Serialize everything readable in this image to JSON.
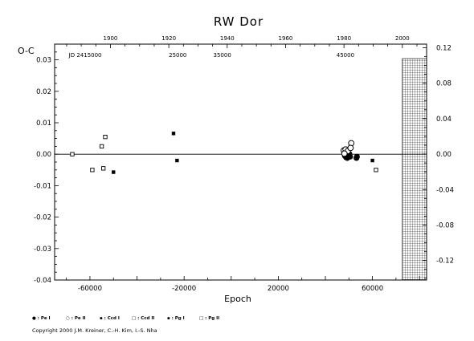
{
  "chart_data": {
    "type": "scatter",
    "title": "RW Dor",
    "xlabel": "Epoch",
    "ylabel": "O-C",
    "xlim": [
      -75000,
      83000
    ],
    "ylim": [
      -0.04,
      0.035
    ],
    "left_ticks": [
      "0.03",
      "0.02",
      "0.01",
      "0.00",
      "-0.01",
      "-0.02",
      "-0.03",
      "-0.04"
    ],
    "left_tick_values": [
      0.03,
      0.02,
      0.01,
      0.0,
      -0.01,
      -0.02,
      -0.03,
      -0.04
    ],
    "right_ticks": [
      "0.12",
      "0.08",
      "0.04",
      "0.00",
      "-0.04",
      "-0.08",
      "-0.12"
    ],
    "right_tick_values": [
      0.12,
      0.08,
      0.04,
      0.0,
      -0.04,
      -0.08,
      -0.12
    ],
    "right_ylim": [
      -0.142,
      0.124
    ],
    "bottom_ticks": [
      "-60000",
      "-20000",
      "20000",
      "60000"
    ],
    "bottom_tick_values": [
      -60000,
      -20000,
      20000,
      60000
    ],
    "top_years": [
      "1900",
      "1920",
      "1940",
      "1960",
      "1980",
      "2000"
    ],
    "top_year_values": [
      -51300,
      -26500,
      -1700,
      23100,
      47900,
      72700
    ],
    "jd_labels": [
      "JD 2415000",
      "25000",
      "35000",
      "45000"
    ],
    "jd_label_values": [
      -62000,
      -22700,
      -3800,
      48500
    ],
    "shaded_region_start": 72700,
    "legend": [
      "● : Pe I",
      "○ : Pe II",
      "▪ : Ccd I",
      "□ : Ccd II",
      "▪ : Pg I",
      "□ : Pg II"
    ],
    "series": [
      {
        "name": "Pe I",
        "marker": "filled-circle",
        "points": [
          [
            48300,
            -0.0005
          ],
          [
            48500,
            0.0
          ],
          [
            48800,
            -0.001
          ],
          [
            49000,
            0.0005
          ],
          [
            49300,
            -0.0012
          ],
          [
            49600,
            0.0002
          ],
          [
            49900,
            -0.0005
          ],
          [
            50200,
            0.0001
          ],
          [
            48700,
            0.0008
          ],
          [
            49100,
            -0.0003
          ],
          [
            50500,
            -0.0008
          ],
          [
            53200,
            -0.0012
          ],
          [
            53400,
            -0.0008
          ]
        ]
      },
      {
        "name": "Pe II",
        "marker": "open-circle",
        "points": [
          [
            47800,
            0.0012
          ],
          [
            48600,
            0.0015
          ],
          [
            49500,
            0.001
          ],
          [
            51000,
            0.0035
          ],
          [
            50700,
            0.002
          ],
          [
            48100,
            0.0002
          ]
        ]
      },
      {
        "name": "Ccd I",
        "marker": "filled-square",
        "points": [
          [
            60000,
            -0.002
          ]
        ]
      },
      {
        "name": "Ccd II",
        "marker": "open-square",
        "points": [
          [
            61500,
            -0.005
          ]
        ]
      },
      {
        "name": "Pg I",
        "marker": "filled-square",
        "points": [
          [
            -50000,
            -0.0057
          ],
          [
            -24500,
            0.0066
          ],
          [
            -23000,
            -0.002
          ]
        ]
      },
      {
        "name": "Pg II",
        "marker": "open-square",
        "points": [
          [
            -67500,
            0.0
          ],
          [
            -59000,
            -0.005
          ],
          [
            -55000,
            0.0025
          ],
          [
            -53500,
            0.0055
          ],
          [
            -54300,
            -0.0045
          ]
        ]
      }
    ]
  },
  "copyright": "Copyright 2000 J.M. Kreiner, C.-H. Kim, I.-S. Nha"
}
